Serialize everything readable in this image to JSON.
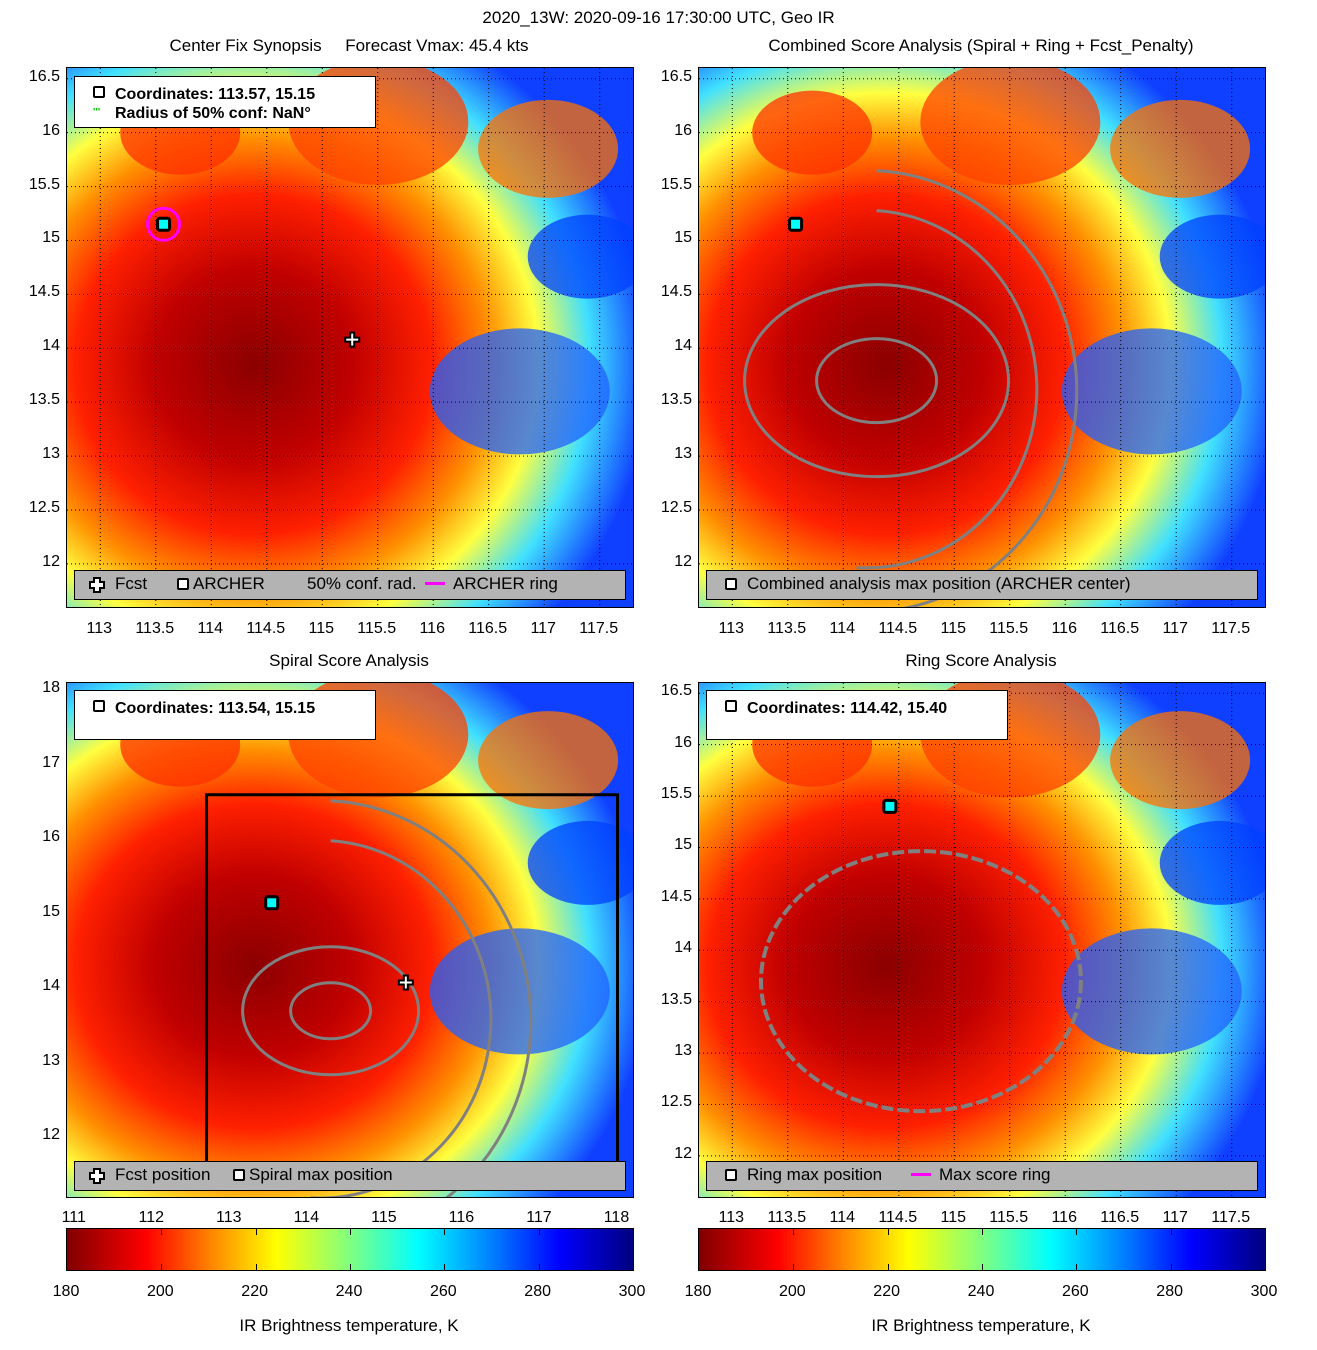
{
  "suptitle": "2020_13W: 2020-09-16 17:30:00 UTC, Geo IR",
  "colors": {
    "ring_magenta": "#ff00ff",
    "contour_gray": "#808080",
    "legend_bg": "#b3b3b3",
    "fcst_marker": "#ffffff",
    "archer_marker": "#000000"
  },
  "chart_data": [
    {
      "type": "heatmap",
      "id": "center-fix",
      "title": "Center Fix Synopsis     Forecast Vmax: 45.4 kts",
      "xlabel": "",
      "ylabel": "",
      "xlim": [
        112.7,
        117.8
      ],
      "ylim": [
        11.6,
        16.6
      ],
      "xticks": [
        "113",
        "113.5",
        "114",
        "114.5",
        "115",
        "115.5",
        "116",
        "116.5",
        "117",
        "117.5"
      ],
      "yticks": [
        "16.5",
        "16",
        "15.5",
        "15",
        "14.5",
        "14",
        "13.5",
        "13",
        "12.5",
        "12"
      ],
      "grid": true,
      "info": [
        "Coordinates: 113.57, 15.15",
        "Radius of 50% conf: NaN°"
      ],
      "legend": {
        "placement": "bottom",
        "items": [
          "Fcst",
          "ARCHER",
          "50% conf. rad.",
          "ARCHER ring"
        ]
      },
      "markers": {
        "archer": [
          113.57,
          15.15
        ],
        "fcst": [
          115.27,
          14.08
        ]
      }
    },
    {
      "type": "heatmap",
      "id": "combined-score",
      "title": "Combined Score Analysis (Spiral + Ring + Fcst_Penalty)",
      "xlim": [
        112.7,
        117.8
      ],
      "ylim": [
        11.6,
        16.6
      ],
      "xticks": [
        "113",
        "113.5",
        "114",
        "114.5",
        "115",
        "115.5",
        "116",
        "116.5",
        "117",
        "117.5"
      ],
      "yticks": [
        "16.5",
        "16",
        "15.5",
        "15",
        "14.5",
        "14",
        "13.5",
        "13",
        "12.5",
        "12"
      ],
      "grid": true,
      "legend": {
        "placement": "bottom",
        "items": [
          "Combined analysis max position (ARCHER center)"
        ]
      },
      "markers": {
        "archer": [
          113.57,
          15.15
        ]
      }
    },
    {
      "type": "heatmap",
      "id": "spiral-score",
      "title": "Spiral Score Analysis",
      "xlim": [
        110.9,
        118.2
      ],
      "ylim": [
        11.2,
        18.1
      ],
      "xticks": [
        "111",
        "112",
        "113",
        "114",
        "115",
        "116",
        "117",
        "118"
      ],
      "yticks": [
        "18",
        "17",
        "16",
        "15",
        "14",
        "13",
        "12"
      ],
      "grid": false,
      "info": [
        "Coordinates: 113.54, 15.15"
      ],
      "legend": {
        "placement": "bottom",
        "items": [
          "Fcst position",
          "Spiral max position"
        ]
      },
      "markers": {
        "spiral_max": [
          113.54,
          15.15
        ],
        "fcst": [
          115.27,
          14.08
        ]
      }
    },
    {
      "type": "heatmap",
      "id": "ring-score",
      "title": "Ring Score Analysis",
      "xlim": [
        112.7,
        117.8
      ],
      "ylim": [
        11.6,
        16.6
      ],
      "xticks": [
        "113",
        "113.5",
        "114",
        "114.5",
        "115",
        "115.5",
        "116",
        "116.5",
        "117",
        "117.5"
      ],
      "yticks": [
        "16.5",
        "16",
        "15.5",
        "15",
        "14.5",
        "14",
        "13.5",
        "13",
        "12.5",
        "12"
      ],
      "grid": true,
      "info": [
        "Coordinates: 114.42, 15.40"
      ],
      "legend": {
        "placement": "bottom",
        "items": [
          "Ring max position",
          "Max score ring"
        ]
      },
      "markers": {
        "ring_max": [
          114.42,
          15.4
        ]
      }
    }
  ],
  "colorbars": [
    {
      "label": "IR Brightness temperature, K",
      "range": [
        180,
        300
      ],
      "ticks": [
        "180",
        "200",
        "220",
        "240",
        "260",
        "280",
        "300"
      ]
    },
    {
      "label": "IR Brightness temperature, K",
      "range": [
        180,
        300
      ],
      "ticks": [
        "180",
        "200",
        "220",
        "240",
        "260",
        "280",
        "300"
      ]
    }
  ]
}
